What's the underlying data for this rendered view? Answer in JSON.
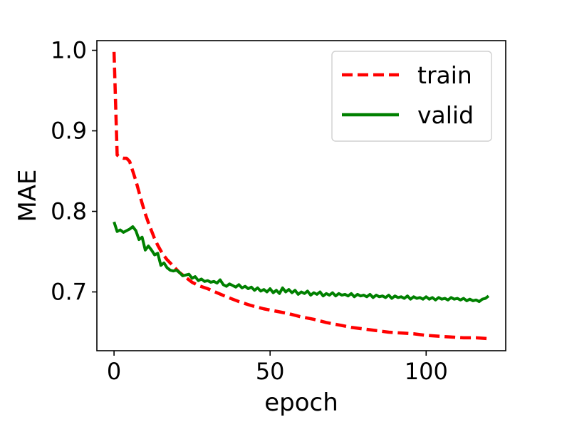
{
  "chart_data": {
    "type": "line",
    "title": "",
    "xlabel": "epoch",
    "ylabel": "MAE",
    "xlim": [
      -5.5,
      125.5
    ],
    "ylim": [
      0.627,
      1.012
    ],
    "xticks": [
      0,
      50,
      100
    ],
    "xtick_labels": [
      "0",
      "50",
      "100"
    ],
    "yticks": [
      0.7,
      0.8,
      0.9,
      1.0
    ],
    "ytick_labels": [
      "0.7",
      "0.8",
      "0.9",
      "1.0"
    ],
    "grid": false,
    "legend_position": "top-right",
    "series": [
      {
        "name": "train",
        "color": "#ff0000",
        "style": "dashed",
        "points": [
          [
            0,
            0.998
          ],
          [
            1,
            0.87
          ],
          [
            2,
            0.867
          ],
          [
            3,
            0.866
          ],
          [
            4,
            0.866
          ],
          [
            5,
            0.862
          ],
          [
            6,
            0.85
          ],
          [
            7,
            0.838
          ],
          [
            8,
            0.824
          ],
          [
            9,
            0.81
          ],
          [
            10,
            0.797
          ],
          [
            11,
            0.786
          ],
          [
            12,
            0.776
          ],
          [
            13,
            0.766
          ],
          [
            14,
            0.758
          ],
          [
            15,
            0.751
          ],
          [
            16,
            0.745
          ],
          [
            17,
            0.74
          ],
          [
            18,
            0.736
          ],
          [
            19,
            0.732
          ],
          [
            20,
            0.728
          ],
          [
            21,
            0.724
          ],
          [
            22,
            0.721
          ],
          [
            23,
            0.718
          ],
          [
            24,
            0.715
          ],
          [
            25,
            0.712
          ],
          [
            27,
            0.708
          ],
          [
            30,
            0.704
          ],
          [
            33,
            0.699
          ],
          [
            36,
            0.694
          ],
          [
            40,
            0.688
          ],
          [
            44,
            0.683
          ],
          [
            48,
            0.679
          ],
          [
            52,
            0.676
          ],
          [
            56,
            0.673
          ],
          [
            60,
            0.669
          ],
          [
            64,
            0.666
          ],
          [
            68,
            0.662
          ],
          [
            72,
            0.659
          ],
          [
            76,
            0.656
          ],
          [
            80,
            0.654
          ],
          [
            84,
            0.652
          ],
          [
            88,
            0.65
          ],
          [
            92,
            0.649
          ],
          [
            96,
            0.648
          ],
          [
            100,
            0.646
          ],
          [
            104,
            0.645
          ],
          [
            108,
            0.644
          ],
          [
            112,
            0.643
          ],
          [
            116,
            0.643
          ],
          [
            120,
            0.642
          ]
        ]
      },
      {
        "name": "valid",
        "color": "#008000",
        "style": "solid",
        "points": [
          [
            0,
            0.787
          ],
          [
            1,
            0.775
          ],
          [
            2,
            0.777
          ],
          [
            3,
            0.774
          ],
          [
            4,
            0.776
          ],
          [
            5,
            0.778
          ],
          [
            6,
            0.781
          ],
          [
            7,
            0.776
          ],
          [
            8,
            0.765
          ],
          [
            9,
            0.768
          ],
          [
            10,
            0.752
          ],
          [
            11,
            0.757
          ],
          [
            12,
            0.752
          ],
          [
            13,
            0.746
          ],
          [
            14,
            0.748
          ],
          [
            15,
            0.733
          ],
          [
            16,
            0.736
          ],
          [
            17,
            0.73
          ],
          [
            18,
            0.727
          ],
          [
            19,
            0.726
          ],
          [
            20,
            0.727
          ],
          [
            21,
            0.724
          ],
          [
            22,
            0.72
          ],
          [
            23,
            0.721
          ],
          [
            24,
            0.722
          ],
          [
            25,
            0.717
          ],
          [
            26,
            0.719
          ],
          [
            27,
            0.714
          ],
          [
            28,
            0.716
          ],
          [
            29,
            0.713
          ],
          [
            30,
            0.714
          ],
          [
            31,
            0.712
          ],
          [
            32,
            0.713
          ],
          [
            33,
            0.711
          ],
          [
            34,
            0.715
          ],
          [
            35,
            0.709
          ],
          [
            36,
            0.707
          ],
          [
            37,
            0.71
          ],
          [
            38,
            0.708
          ],
          [
            39,
            0.706
          ],
          [
            40,
            0.709
          ],
          [
            41,
            0.705
          ],
          [
            42,
            0.707
          ],
          [
            43,
            0.704
          ],
          [
            44,
            0.706
          ],
          [
            45,
            0.702
          ],
          [
            46,
            0.705
          ],
          [
            47,
            0.701
          ],
          [
            48,
            0.703
          ],
          [
            49,
            0.7
          ],
          [
            50,
            0.704
          ],
          [
            51,
            0.699
          ],
          [
            52,
            0.702
          ],
          [
            53,
            0.698
          ],
          [
            54,
            0.705
          ],
          [
            55,
            0.7
          ],
          [
            56,
            0.703
          ],
          [
            57,
            0.699
          ],
          [
            58,
            0.702
          ],
          [
            59,
            0.697
          ],
          [
            60,
            0.7
          ],
          [
            61,
            0.698
          ],
          [
            62,
            0.701
          ],
          [
            63,
            0.696
          ],
          [
            64,
            0.699
          ],
          [
            65,
            0.697
          ],
          [
            66,
            0.7
          ],
          [
            67,
            0.695
          ],
          [
            68,
            0.698
          ],
          [
            69,
            0.696
          ],
          [
            70,
            0.699
          ],
          [
            71,
            0.695
          ],
          [
            72,
            0.698
          ],
          [
            73,
            0.696
          ],
          [
            74,
            0.697
          ],
          [
            75,
            0.695
          ],
          [
            76,
            0.698
          ],
          [
            77,
            0.694
          ],
          [
            78,
            0.697
          ],
          [
            79,
            0.695
          ],
          [
            80,
            0.696
          ],
          [
            81,
            0.694
          ],
          [
            82,
            0.697
          ],
          [
            83,
            0.693
          ],
          [
            84,
            0.696
          ],
          [
            85,
            0.694
          ],
          [
            86,
            0.695
          ],
          [
            87,
            0.693
          ],
          [
            88,
            0.696
          ],
          [
            89,
            0.692
          ],
          [
            90,
            0.695
          ],
          [
            91,
            0.693
          ],
          [
            92,
            0.694
          ],
          [
            93,
            0.692
          ],
          [
            94,
            0.695
          ],
          [
            95,
            0.691
          ],
          [
            96,
            0.694
          ],
          [
            97,
            0.692
          ],
          [
            98,
            0.693
          ],
          [
            99,
            0.691
          ],
          [
            100,
            0.694
          ],
          [
            101,
            0.691
          ],
          [
            102,
            0.693
          ],
          [
            103,
            0.69
          ],
          [
            104,
            0.693
          ],
          [
            105,
            0.691
          ],
          [
            106,
            0.692
          ],
          [
            107,
            0.69
          ],
          [
            108,
            0.693
          ],
          [
            109,
            0.691
          ],
          [
            110,
            0.692
          ],
          [
            111,
            0.69
          ],
          [
            112,
            0.692
          ],
          [
            113,
            0.689
          ],
          [
            114,
            0.691
          ],
          [
            115,
            0.689
          ],
          [
            116,
            0.69
          ],
          [
            117,
            0.688
          ],
          [
            118,
            0.691
          ],
          [
            119,
            0.692
          ],
          [
            120,
            0.695
          ]
        ]
      }
    ]
  }
}
